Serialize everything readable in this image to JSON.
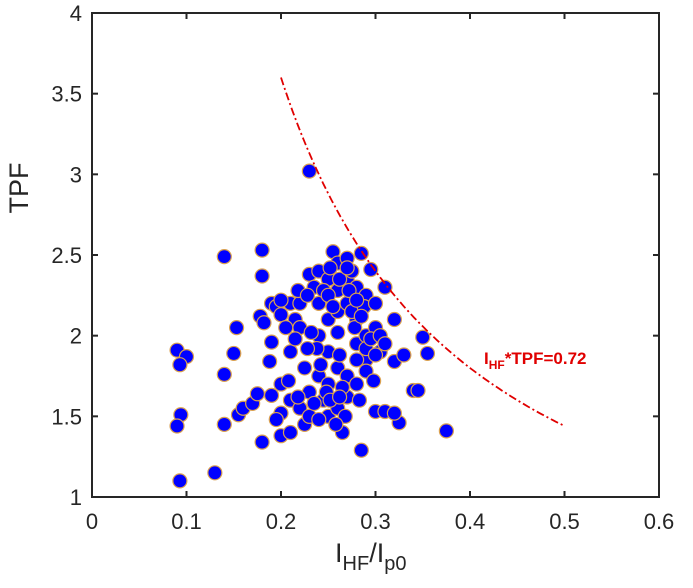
{
  "chart_data": {
    "type": "scatter",
    "title": "",
    "xlabel": {
      "main": "I",
      "sub1": "HF",
      "slash": "/I",
      "sub2": "p0"
    },
    "ylabel": "TPF",
    "xlim": [
      0,
      0.6
    ],
    "ylim": [
      1,
      4
    ],
    "xticks": [
      "0",
      "0.1",
      "0.2",
      "0.3",
      "0.4",
      "0.5",
      "0.6"
    ],
    "xtick_values": [
      0,
      0.1,
      0.2,
      0.3,
      0.4,
      0.5,
      0.6
    ],
    "yticks": [
      "1",
      "1.5",
      "2",
      "2.5",
      "3",
      "3.5",
      "4"
    ],
    "ytick_values": [
      1,
      1.5,
      2,
      2.5,
      3,
      3.5,
      4
    ],
    "grid": false,
    "marker_color": "#0000ff",
    "marker_edge": "#d9a050",
    "curve": {
      "equation_product": 0.72,
      "x_range": [
        0.2,
        0.5
      ],
      "color": "#e00000",
      "style": "dash-dot"
    },
    "annotation": {
      "main": "I",
      "sub": "HF",
      "rest": "*TPF=0.72",
      "color": "#e00000"
    },
    "points": [
      [
        0.23,
        3.02
      ],
      [
        0.14,
        2.49
      ],
      [
        0.18,
        2.53
      ],
      [
        0.18,
        2.37
      ],
      [
        0.09,
        1.91
      ],
      [
        0.1,
        1.87
      ],
      [
        0.093,
        1.82
      ],
      [
        0.094,
        1.51
      ],
      [
        0.09,
        1.44
      ],
      [
        0.093,
        1.1
      ],
      [
        0.13,
        1.15
      ],
      [
        0.14,
        1.45
      ],
      [
        0.14,
        1.76
      ],
      [
        0.15,
        1.89
      ],
      [
        0.153,
        2.05
      ],
      [
        0.155,
        1.51
      ],
      [
        0.16,
        1.55
      ],
      [
        0.17,
        1.58
      ],
      [
        0.175,
        1.64
      ],
      [
        0.18,
        1.34
      ],
      [
        0.178,
        2.12
      ],
      [
        0.182,
        2.08
      ],
      [
        0.188,
        1.84
      ],
      [
        0.19,
        1.96
      ],
      [
        0.19,
        2.2
      ],
      [
        0.195,
        2.18
      ],
      [
        0.2,
        2.13
      ],
      [
        0.2,
        1.7
      ],
      [
        0.2,
        1.38
      ],
      [
        0.19,
        1.63
      ],
      [
        0.21,
        1.4
      ],
      [
        0.21,
        1.6
      ],
      [
        0.21,
        1.9
      ],
      [
        0.21,
        2.2
      ],
      [
        0.215,
        2.1
      ],
      [
        0.22,
        2.2
      ],
      [
        0.22,
        2.05
      ],
      [
        0.22,
        1.55
      ],
      [
        0.225,
        1.45
      ],
      [
        0.23,
        1.5
      ],
      [
        0.23,
        2.38
      ],
      [
        0.235,
        2.3
      ],
      [
        0.24,
        2.4
      ],
      [
        0.24,
        2.2
      ],
      [
        0.24,
        2.0
      ],
      [
        0.24,
        1.75
      ],
      [
        0.245,
        1.6
      ],
      [
        0.25,
        2.35
      ],
      [
        0.25,
        2.1
      ],
      [
        0.25,
        1.9
      ],
      [
        0.25,
        1.7
      ],
      [
        0.25,
        1.5
      ],
      [
        0.255,
        2.52
      ],
      [
        0.26,
        2.45
      ],
      [
        0.26,
        2.28
      ],
      [
        0.26,
        2.15
      ],
      [
        0.26,
        1.8
      ],
      [
        0.26,
        1.55
      ],
      [
        0.265,
        1.4
      ],
      [
        0.27,
        2.48
      ],
      [
        0.27,
        2.35
      ],
      [
        0.27,
        2.2
      ],
      [
        0.27,
        1.75
      ],
      [
        0.27,
        1.62
      ],
      [
        0.275,
        2.4
      ],
      [
        0.28,
        2.3
      ],
      [
        0.28,
        2.1
      ],
      [
        0.28,
        1.95
      ],
      [
        0.28,
        1.7
      ],
      [
        0.285,
        2.51
      ],
      [
        0.285,
        1.29
      ],
      [
        0.29,
        2.25
      ],
      [
        0.29,
        1.85
      ],
      [
        0.29,
        2.0
      ],
      [
        0.295,
        2.41
      ],
      [
        0.3,
        2.05
      ],
      [
        0.3,
        1.53
      ],
      [
        0.305,
        1.9
      ],
      [
        0.31,
        2.3
      ],
      [
        0.31,
        1.53
      ],
      [
        0.32,
        2.1
      ],
      [
        0.32,
        1.84
      ],
      [
        0.325,
        1.46
      ],
      [
        0.33,
        1.88
      ],
      [
        0.34,
        1.66
      ],
      [
        0.345,
        1.66
      ],
      [
        0.35,
        1.99
      ],
      [
        0.355,
        1.89
      ],
      [
        0.375,
        1.41
      ],
      [
        0.2,
        2.22
      ],
      [
        0.205,
        2.05
      ],
      [
        0.215,
        1.98
      ],
      [
        0.225,
        1.8
      ],
      [
        0.23,
        1.65
      ],
      [
        0.235,
        1.58
      ],
      [
        0.24,
        1.48
      ],
      [
        0.245,
        2.28
      ],
      [
        0.25,
        2.25
      ],
      [
        0.255,
        2.18
      ],
      [
        0.26,
        2.02
      ],
      [
        0.262,
        1.88
      ],
      [
        0.265,
        1.68
      ],
      [
        0.268,
        1.5
      ],
      [
        0.272,
        2.28
      ],
      [
        0.275,
        2.15
      ],
      [
        0.278,
        2.05
      ],
      [
        0.28,
        1.85
      ],
      [
        0.283,
        1.6
      ],
      [
        0.288,
        2.18
      ],
      [
        0.29,
        1.92
      ],
      [
        0.295,
        1.98
      ],
      [
        0.3,
        2.2
      ],
      [
        0.3,
        1.88
      ],
      [
        0.305,
        2.0
      ],
      [
        0.31,
        1.95
      ],
      [
        0.232,
        2.02
      ],
      [
        0.238,
        1.92
      ],
      [
        0.242,
        1.82
      ],
      [
        0.248,
        1.65
      ],
      [
        0.252,
        1.6
      ],
      [
        0.258,
        1.45
      ],
      [
        0.262,
        1.62
      ],
      [
        0.252,
        2.42
      ],
      [
        0.262,
        2.35
      ],
      [
        0.27,
        2.42
      ],
      [
        0.28,
        2.22
      ],
      [
        0.285,
        2.12
      ],
      [
        0.208,
        1.72
      ],
      [
        0.218,
        1.62
      ],
      [
        0.2,
        1.52
      ],
      [
        0.195,
        1.48
      ],
      [
        0.228,
        1.92
      ],
      [
        0.218,
        2.28
      ],
      [
        0.228,
        2.25
      ],
      [
        0.29,
        1.78
      ],
      [
        0.298,
        1.72
      ],
      [
        0.32,
        1.52
      ]
    ]
  }
}
